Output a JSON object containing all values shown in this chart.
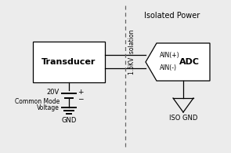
{
  "title": "Isolated Power",
  "isolation_label": "1.5KV Isolation",
  "transducer_label": "Transducer",
  "adc_label": "ADC",
  "ain_plus": "AIN(+)",
  "ain_minus": "AIN(-)",
  "voltage_label": "20V",
  "cm_line1": "Common Mode",
  "cm_line2": "Voltage",
  "gnd_label": "GND",
  "iso_gnd_label": "ISO GND",
  "bg_color": "#ececec",
  "box_color": "#ffffff",
  "line_color": "#000000",
  "dashed_color": "#666666"
}
